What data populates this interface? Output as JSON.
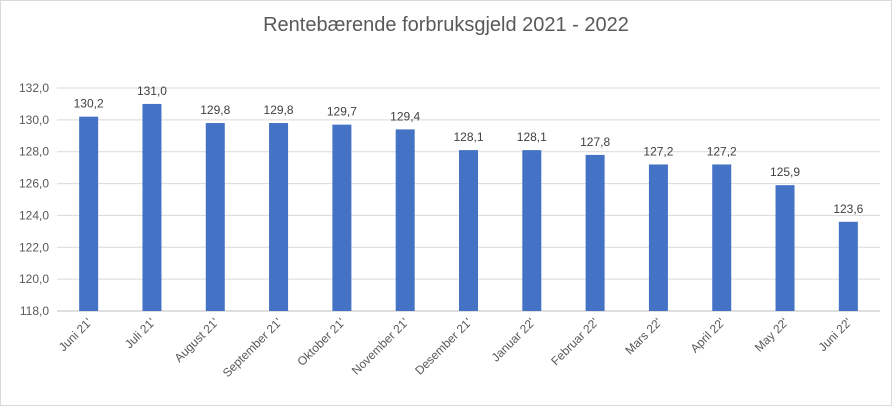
{
  "chart_data": {
    "type": "bar",
    "title": "Rentebærende forbruksgjeld 2021 - 2022",
    "categories": [
      "Juni 21'",
      "Juli 21'",
      "August 21'",
      "September 21'",
      "Oktober 21'",
      "November 21'",
      "Desember 21'",
      "Januar 22'",
      "Februar 22'",
      "Mars 22'",
      "April 22'",
      "May 22'",
      "Juni 22'"
    ],
    "values": [
      130.2,
      131.0,
      129.8,
      129.8,
      129.7,
      129.4,
      128.1,
      128.1,
      127.8,
      127.2,
      127.2,
      125.9,
      123.6
    ],
    "data_labels": [
      "130,2",
      "131,0",
      "129,8",
      "129,8",
      "129,7",
      "129,4",
      "128,1",
      "128,1",
      "127,8",
      "127,2",
      "127,2",
      "125,9",
      "123,6"
    ],
    "y_ticks": [
      "118,0",
      "120,0",
      "122,0",
      "124,0",
      "126,0",
      "128,0",
      "130,0",
      "132,0"
    ],
    "ylim": [
      118,
      132
    ],
    "grid": true,
    "legend": "none",
    "bar_color": "#4472c4"
  }
}
